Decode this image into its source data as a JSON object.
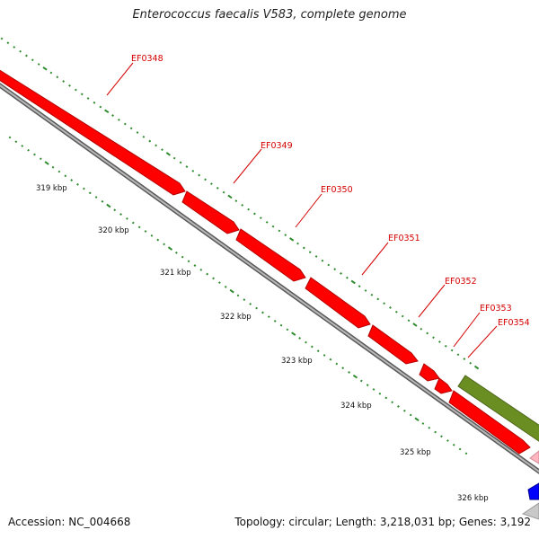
{
  "title": "Enterococcus faecalis V583, complete genome",
  "footer": {
    "accession": "Accession: NC_004668",
    "summary": "Topology: circular; Length: 3,218,031 bp; Genes: 3,192"
  },
  "colors": {
    "gene_forward": "#ff0000",
    "gene_forward_shade": "#b30000",
    "gene_other": "#6b8e23",
    "gene_other_shade": "#4b6618",
    "backbone": "#8a8a8a",
    "tick": "#2e8b2e",
    "label": "#d40000",
    "feature_blue": "#0000ff",
    "feature_pink": "#ffb6c1"
  },
  "genes": [
    {
      "name": "EF0348"
    },
    {
      "name": "EF0349"
    },
    {
      "name": "EF0350"
    },
    {
      "name": "EF0351"
    },
    {
      "name": "EF0352"
    },
    {
      "name": "EF0353"
    },
    {
      "name": "EF0354"
    }
  ],
  "scale_labels": [
    "319 kbp",
    "320 kbp",
    "321 kbp",
    "322 kbp",
    "323 kbp",
    "324 kbp",
    "325 kbp",
    "326 kbp"
  ]
}
